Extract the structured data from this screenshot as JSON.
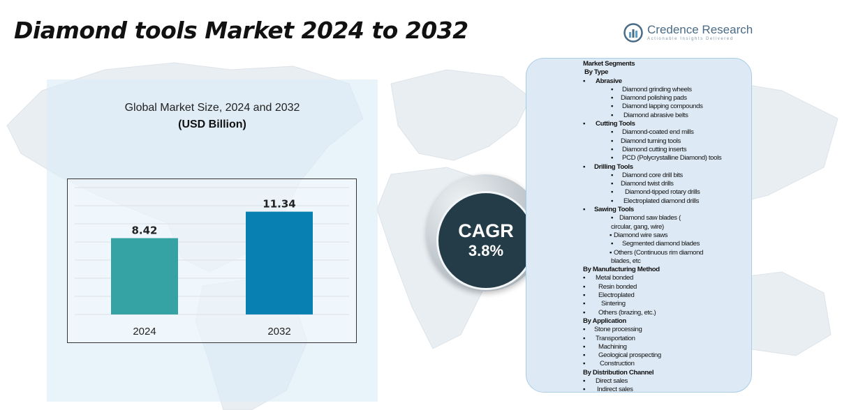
{
  "title": "Diamond tools Market 2024 to 2032",
  "logo": {
    "name": "Credence Research",
    "tagline": "Actionable Insights Delivered"
  },
  "chart_panel": {
    "title": "Global Market Size, 2024 and 2032",
    "subtitle": "(USD Billion)"
  },
  "chart_data": {
    "type": "bar",
    "title": "Global Market Size, 2024 and 2032",
    "subtitle": "(USD Billion)",
    "categories": [
      "2024",
      "2032"
    ],
    "values": [
      8.42,
      11.34
    ],
    "value_labels": [
      "8.42",
      "11.34"
    ],
    "colors": [
      "#35a3a4",
      "#0980b2"
    ],
    "ylim": [
      0,
      14
    ],
    "grid": true,
    "legend": "none"
  },
  "cagr": {
    "label": "CAGR",
    "value": "3.8%"
  },
  "segments": {
    "heading": "Market Segments",
    "rows": [
      {
        "text": "By Type",
        "bullet": "",
        "indent": 2,
        "bold": true
      },
      {
        "text": "Abrasive",
        "bullet": "▪",
        "indent": 0,
        "bold": true,
        "gap": 12
      },
      {
        "text": "Diamond grinding wheels",
        "bullet": "▪",
        "indent": 40,
        "bold": false,
        "gap": 10
      },
      {
        "text": "Diamond polishing pads",
        "bullet": "▪",
        "indent": 40,
        "bold": false,
        "gap": 8
      },
      {
        "text": "Diamond lapping compounds",
        "bullet": "▪",
        "indent": 40,
        "bold": false,
        "gap": 10
      },
      {
        "text": "Diamond abrasive belts",
        "bullet": "▪",
        "indent": 40,
        "bold": false,
        "gap": 12
      },
      {
        "text": "Cutting Tools",
        "bullet": "▪",
        "indent": 0,
        "bold": true,
        "gap": 12
      },
      {
        "text": "Diamond-coated end mills",
        "bullet": "▪",
        "indent": 40,
        "bold": false,
        "gap": 10
      },
      {
        "text": "Diamond turning tools",
        "bullet": "▪",
        "indent": 40,
        "bold": false,
        "gap": 8
      },
      {
        "text": "Diamond cutting inserts",
        "bullet": "▪",
        "indent": 40,
        "bold": false,
        "gap": 10
      },
      {
        "text": "PCD (Polycrystalline Diamond) tools",
        "bullet": "▪",
        "indent": 40,
        "bold": false,
        "gap": 10
      },
      {
        "text": "Drilling Tools",
        "bullet": "▪",
        "indent": 0,
        "bold": true,
        "gap": 10
      },
      {
        "text": "Diamond core drill bits",
        "bullet": "▪",
        "indent": 40,
        "bold": false,
        "gap": 10
      },
      {
        "text": "Diamond twist drills",
        "bullet": "▪",
        "indent": 40,
        "bold": false,
        "gap": 8
      },
      {
        "text": "Diamond-tipped rotary drills",
        "bullet": "▪",
        "indent": 40,
        "bold": false,
        "gap": 14
      },
      {
        "text": "Electroplated diamond drills",
        "bullet": "▪",
        "indent": 40,
        "bold": false,
        "gap": 12
      },
      {
        "text": "Sawing Tools",
        "bullet": "▪",
        "indent": 0,
        "bold": true,
        "gap": 10
      },
      {
        "text": "Diamond saw blades (",
        "bullet": "▪",
        "indent": 40,
        "bold": false,
        "gap": 6
      },
      {
        "text": "circular, gang, wire)",
        "bullet": "",
        "indent": 40,
        "bold": false
      },
      {
        "text": "Diamond wire saws",
        "bullet": "▪",
        "indent": 38,
        "bold": false,
        "gap": 0
      },
      {
        "text": "Segmented diamond blades",
        "bullet": "▪",
        "indent": 40,
        "bold": false,
        "gap": 10
      },
      {
        "text": "Others (Continuous rim diamond",
        "bullet": "▪",
        "indent": 38,
        "bold": false,
        "gap": 0
      },
      {
        "text": "blades, etc",
        "bullet": "",
        "indent": 40,
        "bold": false
      },
      {
        "text": "By Manufacturing Method",
        "bullet": "",
        "indent": 0,
        "bold": true
      },
      {
        "text": "Metal bonded",
        "bullet": "▪",
        "indent": 0,
        "bold": false,
        "gap": 12
      },
      {
        "text": "Resin bonded",
        "bullet": "▪",
        "indent": 0,
        "bold": false,
        "gap": 16
      },
      {
        "text": "Electroplated",
        "bullet": "▪",
        "indent": 0,
        "bold": false,
        "gap": 16
      },
      {
        "text": "Sintering",
        "bullet": "▪",
        "indent": 0,
        "bold": false,
        "gap": 20
      },
      {
        "text": "Others (brazing, etc.)",
        "bullet": "▪",
        "indent": 0,
        "bold": false,
        "gap": 16
      },
      {
        "text": "By Application",
        "bullet": "",
        "indent": 0,
        "bold": true
      },
      {
        "text": "Stone processing",
        "bullet": "▪",
        "indent": 0,
        "bold": false,
        "gap": 10
      },
      {
        "text": "Transportation",
        "bullet": "▪",
        "indent": 0,
        "bold": false,
        "gap": 12
      },
      {
        "text": "Machining",
        "bullet": "▪",
        "indent": 0,
        "bold": false,
        "gap": 16
      },
      {
        "text": "Geological prospecting",
        "bullet": "▪",
        "indent": 0,
        "bold": false,
        "gap": 16
      },
      {
        "text": "Construction",
        "bullet": "▪",
        "indent": 0,
        "bold": false,
        "gap": 18
      },
      {
        "text": "By Distribution Channel",
        "bullet": "",
        "indent": 0,
        "bold": true
      },
      {
        "text": "Direct sales",
        "bullet": "▪",
        "indent": 0,
        "bold": false,
        "gap": 12
      },
      {
        "text": "Indirect sales",
        "bullet": "▪",
        "indent": 0,
        "bold": false,
        "gap": 14
      }
    ]
  }
}
